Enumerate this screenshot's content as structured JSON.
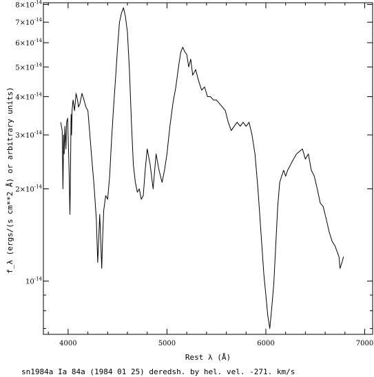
{
  "chart_data": {
    "type": "line",
    "xlabel": "Rest λ (Å)",
    "ylabel": "f_λ (ergs/(s cm**2 Å) or arbitrary units)",
    "caption": "sn1984a Ia 84a (1984 01 25) deredsh. by hel. vel.  -271. km/s",
    "xlim": [
      3750,
      7080
    ],
    "ylim": [
      6.7e-15,
      8.1e-14
    ],
    "yscale": "log",
    "grid": false,
    "x_ticks": [
      {
        "value": 4000,
        "label": "4000"
      },
      {
        "value": 5000,
        "label": "5000"
      },
      {
        "value": 6000,
        "label": "6000"
      },
      {
        "value": 7000,
        "label": "7000"
      }
    ],
    "y_ticks": [
      {
        "value": 1e-14,
        "mantissa": "",
        "exp": "-14"
      },
      {
        "value": 2e-14,
        "mantissa": "2",
        "exp": "-14"
      },
      {
        "value": 3e-14,
        "mantissa": "3",
        "exp": "-14"
      },
      {
        "value": 4e-14,
        "mantissa": "4",
        "exp": "-14"
      },
      {
        "value": 5e-14,
        "mantissa": "5",
        "exp": "-14"
      },
      {
        "value": 6e-14,
        "mantissa": "6",
        "exp": "-14"
      },
      {
        "value": 7e-14,
        "mantissa": "7",
        "exp": "-14"
      },
      {
        "value": 8e-14,
        "mantissa": "8",
        "exp": "-14"
      }
    ],
    "series": [
      {
        "color": "#000000",
        "x": [
          3925,
          3940,
          3948,
          3955,
          3960,
          3968,
          3978,
          3985,
          3995,
          4010,
          4018,
          4023,
          4030,
          4035,
          4040,
          4050,
          4065,
          4080,
          4095,
          4105,
          4120,
          4140,
          4160,
          4180,
          4200,
          4220,
          4240,
          4260,
          4285,
          4300,
          4320,
          4340,
          4350,
          4360,
          4380,
          4400,
          4420,
          4440,
          4460,
          4480,
          4500,
          4520,
          4540,
          4560,
          4580,
          4600,
          4620,
          4640,
          4660,
          4680,
          4700,
          4720,
          4740,
          4760,
          4780,
          4800,
          4830,
          4860,
          4890,
          4920,
          4950,
          4975,
          5000,
          5030,
          5060,
          5090,
          5120,
          5140,
          5160,
          5180,
          5200,
          5220,
          5240,
          5260,
          5290,
          5320,
          5350,
          5380,
          5410,
          5440,
          5470,
          5500,
          5530,
          5560,
          5590,
          5620,
          5650,
          5680,
          5710,
          5740,
          5770,
          5800,
          5830,
          5860,
          5890,
          5920,
          5950,
          5980,
          6000,
          6020,
          6040,
          6060,
          6080,
          6100,
          6120,
          6140,
          6160,
          6180,
          6200,
          6220,
          6250,
          6280,
          6310,
          6340,
          6370,
          6400,
          6430,
          6460,
          6490,
          6520,
          6550,
          6580,
          6610,
          6640,
          6670,
          6700,
          6720,
          6740,
          6750,
          6770,
          6785
        ],
        "values": [
          3.3e-14,
          3.1e-14,
          2e-14,
          3e-14,
          2.6e-14,
          3.2e-14,
          2.7e-14,
          3.3e-14,
          3.4e-14,
          2.3e-14,
          1.65e-14,
          2.1e-14,
          3.5e-14,
          3e-14,
          3.6e-14,
          3.9e-14,
          3.6e-14,
          4.1e-14,
          3.9e-14,
          3.7e-14,
          3.8e-14,
          4.1e-14,
          3.9e-14,
          3.7e-14,
          3.6e-14,
          3e-14,
          2.5e-14,
          2.1e-14,
          1.6e-14,
          1.15e-14,
          1.65e-14,
          1.1e-14,
          1.4e-14,
          1.7e-14,
          1.9e-14,
          1.85e-14,
          2.2e-14,
          2.9e-14,
          3.7e-14,
          4.6e-14,
          5.8e-14,
          7e-14,
          7.5e-14,
          7.8e-14,
          7.3e-14,
          6.5e-14,
          4.9e-14,
          3.3e-14,
          2.4e-14,
          2.1e-14,
          1.95e-14,
          2e-14,
          1.85e-14,
          1.9e-14,
          2.3e-14,
          2.7e-14,
          2.4e-14,
          2e-14,
          2.6e-14,
          2.3e-14,
          2.1e-14,
          2.3e-14,
          2.6e-14,
          3.2e-14,
          3.8e-14,
          4.3e-14,
          5.1e-14,
          5.6e-14,
          5.8e-14,
          5.6e-14,
          5.5e-14,
          5e-14,
          5.3e-14,
          4.7e-14,
          4.9e-14,
          4.5e-14,
          4.2e-14,
          4.3e-14,
          4e-14,
          4e-14,
          3.9e-14,
          3.9e-14,
          3.8e-14,
          3.7e-14,
          3.6e-14,
          3.3e-14,
          3.1e-14,
          3.2e-14,
          3.3e-14,
          3.2e-14,
          3.3e-14,
          3.2e-14,
          3.3e-14,
          3e-14,
          2.6e-14,
          2e-14,
          1.45e-14,
          1.05e-14,
          9e-15,
          7.7e-15,
          7e-15,
          8.2e-15,
          9.8e-15,
          1.3e-14,
          1.75e-14,
          2.1e-14,
          2.2e-14,
          2.3e-14,
          2.2e-14,
          2.3e-14,
          2.4e-14,
          2.5e-14,
          2.6e-14,
          2.65e-14,
          2.7e-14,
          2.5e-14,
          2.6e-14,
          2.3e-14,
          2.2e-14,
          2e-14,
          1.8e-14,
          1.75e-14,
          1.6e-14,
          1.45e-14,
          1.35e-14,
          1.3e-14,
          1.25e-14,
          1.2e-14,
          1.1e-14,
          1.15e-14,
          1.2e-14
        ]
      }
    ]
  }
}
